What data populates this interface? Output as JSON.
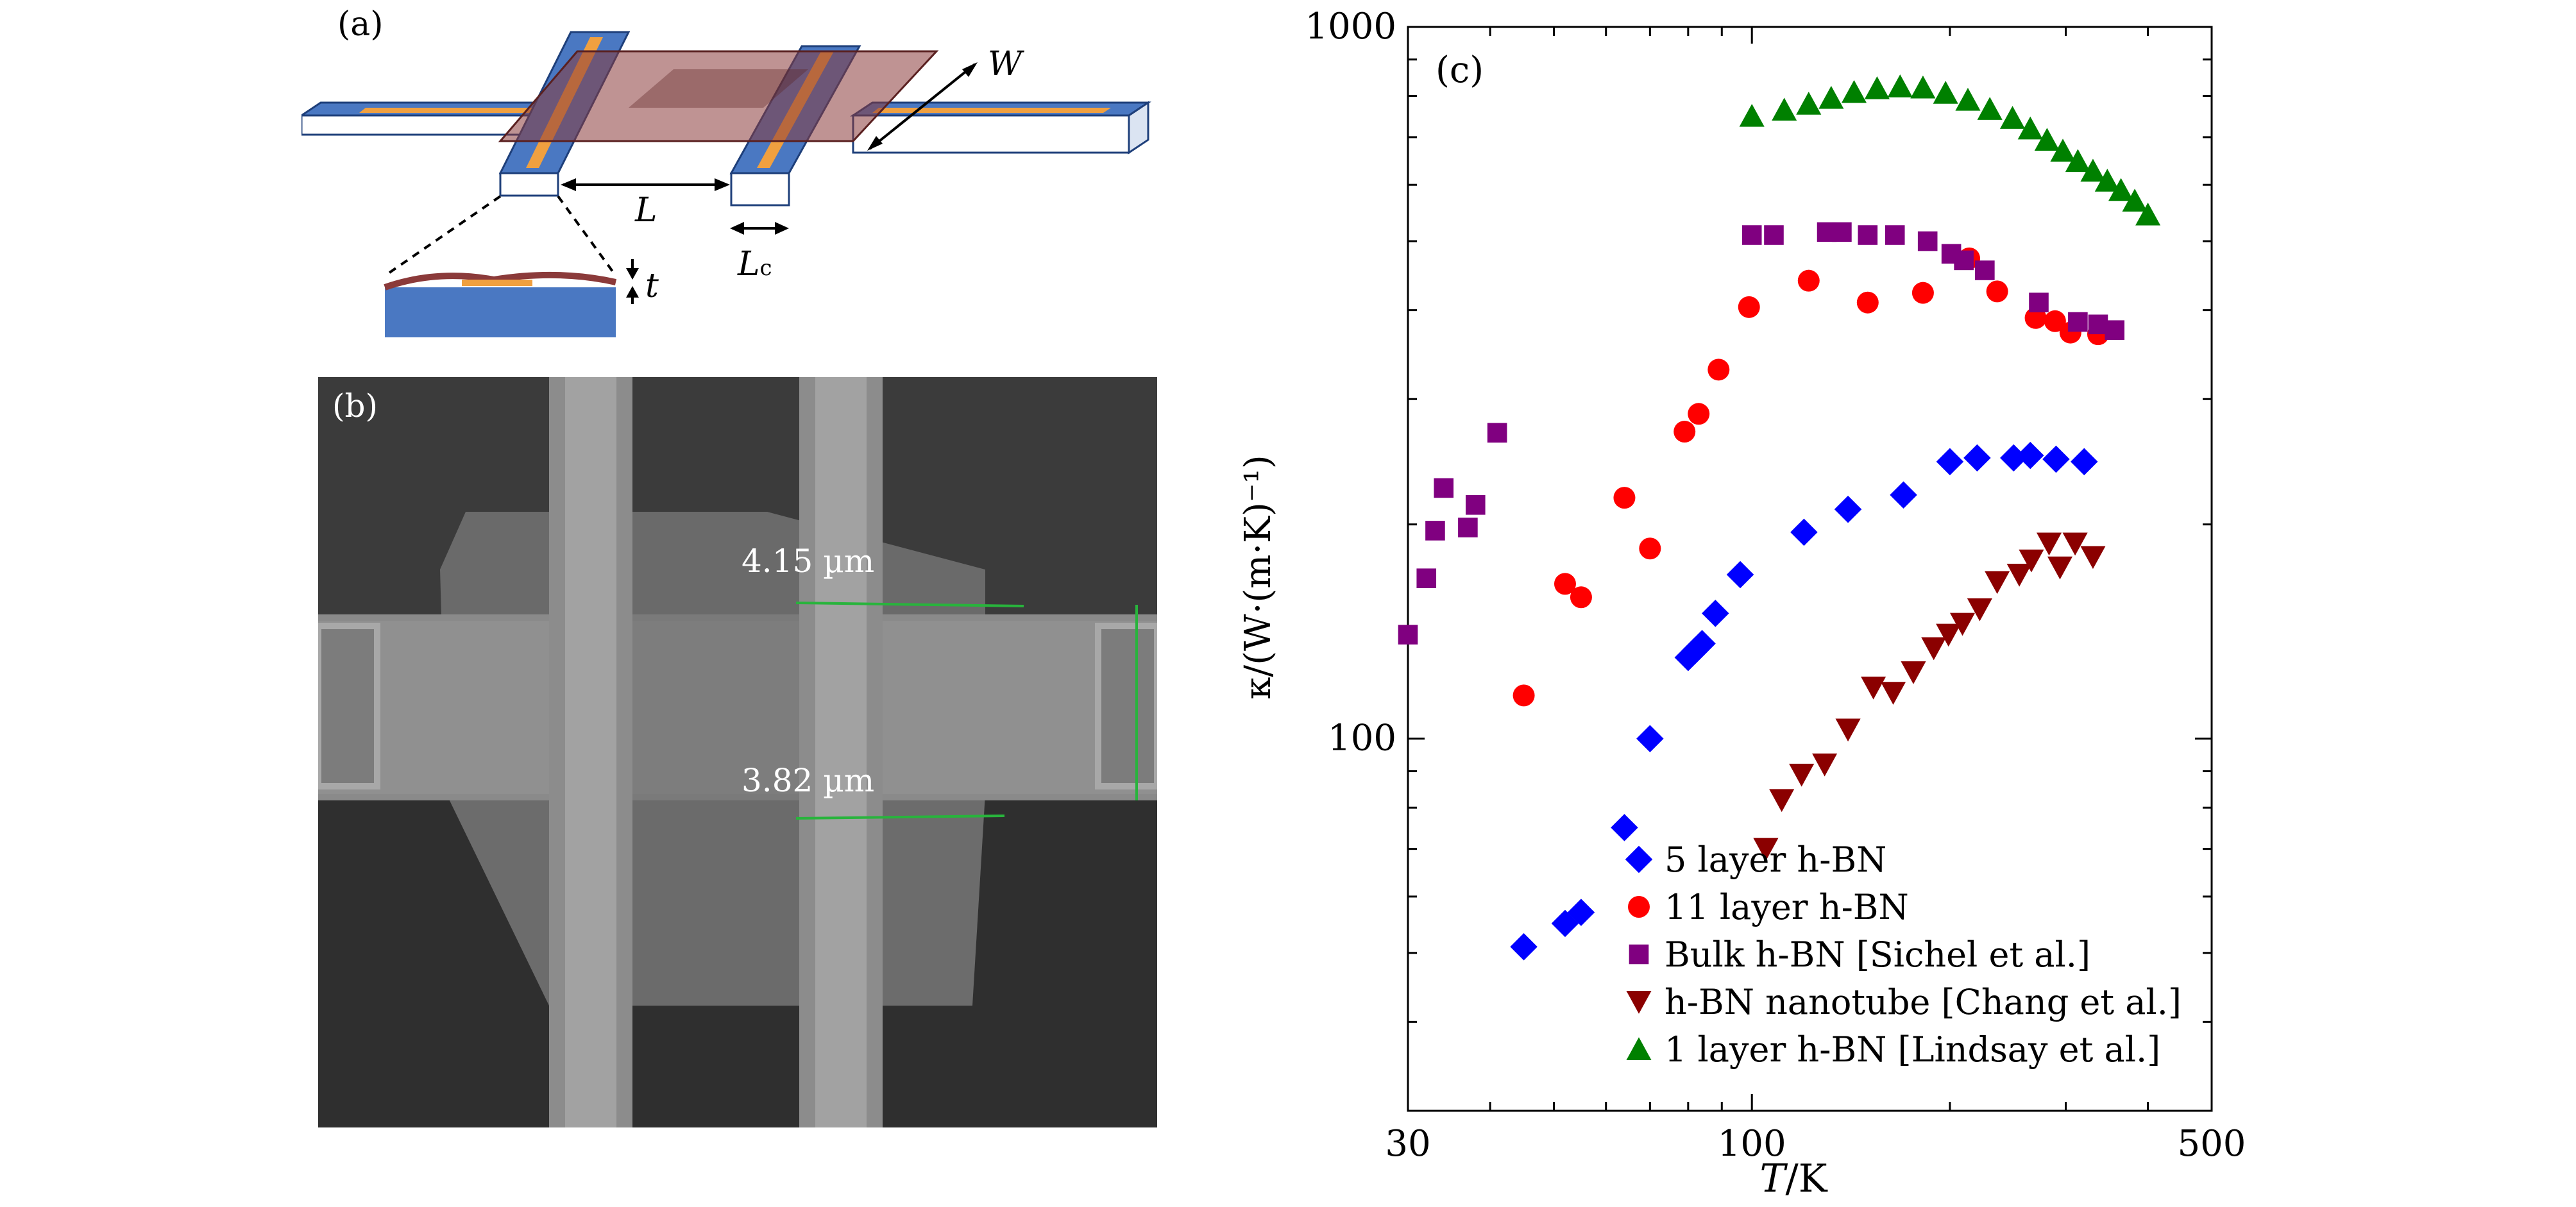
{
  "panel_a": {
    "label": "(a)",
    "dim_W": "W",
    "dim_L": "L",
    "dim_Lc_main": "L",
    "dim_Lc_sub": "c",
    "dim_t": "t"
  },
  "panel_b": {
    "label": "(b)",
    "measure_top": "4.15 µm",
    "measure_bottom": "3.82 µm"
  },
  "chart_data": {
    "type": "scatter",
    "panel_label": "(c)",
    "xlabel_var": "T",
    "xlabel_unit": "/K",
    "ylabel": "κ/(W·(m·K)⁻¹)",
    "xscale": "log",
    "yscale": "log",
    "xlim": [
      30,
      500
    ],
    "ylim": [
      30,
      1000
    ],
    "xticks": [
      "30",
      "100",
      "500"
    ],
    "yticks": [
      "100",
      "1000"
    ],
    "grid": false,
    "legend_position": "bottom-right",
    "series": [
      {
        "name": "5 layer h-BN",
        "marker": "diamond",
        "color": "#0000ff",
        "points": [
          [
            45,
            51
          ],
          [
            52,
            55
          ],
          [
            55,
            57
          ],
          [
            64,
            75
          ],
          [
            70,
            100
          ],
          [
            80,
            130
          ],
          [
            82,
            133
          ],
          [
            84,
            136
          ],
          [
            88,
            150
          ],
          [
            96,
            170
          ],
          [
            120,
            195
          ],
          [
            140,
            210
          ],
          [
            170,
            220
          ],
          [
            200,
            245
          ],
          [
            220,
            248
          ],
          [
            250,
            248
          ],
          [
            265,
            250
          ],
          [
            290,
            247
          ],
          [
            320,
            245
          ]
        ]
      },
      {
        "name": "11 layer h-BN",
        "marker": "circle",
        "color": "#ff0000",
        "points": [
          [
            45,
            115
          ],
          [
            52,
            165
          ],
          [
            55,
            158
          ],
          [
            64,
            218
          ],
          [
            70,
            185
          ],
          [
            79,
            270
          ],
          [
            83,
            286
          ],
          [
            89,
            330
          ],
          [
            99,
            404
          ],
          [
            122,
            440
          ],
          [
            150,
            410
          ],
          [
            182,
            423
          ],
          [
            214,
            473
          ],
          [
            236,
            425
          ],
          [
            270,
            390
          ],
          [
            289,
            386
          ],
          [
            305,
            372
          ],
          [
            336,
            370
          ]
        ]
      },
      {
        "name": "Bulk h-BN [Sichel et al.]",
        "marker": "square",
        "color": "#800080",
        "points": [
          [
            30,
            140
          ],
          [
            32,
            168
          ],
          [
            33,
            196
          ],
          [
            34,
            225
          ],
          [
            37,
            198
          ],
          [
            38,
            213
          ],
          [
            41,
            269
          ],
          [
            100,
            510
          ],
          [
            108,
            510
          ],
          [
            130,
            515
          ],
          [
            137,
            515
          ],
          [
            150,
            510
          ],
          [
            165,
            510
          ],
          [
            185,
            500
          ],
          [
            201,
            480
          ],
          [
            210,
            470
          ],
          [
            226,
            455
          ],
          [
            273,
            410
          ],
          [
            313,
            385
          ],
          [
            336,
            382
          ],
          [
            356,
            375
          ]
        ]
      },
      {
        "name": "h-BN nanotube [Chang et al.]",
        "marker": "triangle-down",
        "color": "#8b0000",
        "points": [
          [
            105,
            70
          ],
          [
            111,
            82
          ],
          [
            119,
            89
          ],
          [
            129,
            92
          ],
          [
            140,
            103
          ],
          [
            153,
            118
          ],
          [
            164,
            116
          ],
          [
            176,
            124
          ],
          [
            189,
            134
          ],
          [
            199,
            140
          ],
          [
            209,
            145
          ],
          [
            222,
            152
          ],
          [
            236,
            166
          ],
          [
            255,
            170
          ],
          [
            266,
            178
          ],
          [
            283,
            188
          ],
          [
            294,
            174
          ],
          [
            310,
            188
          ],
          [
            330,
            180
          ]
        ]
      },
      {
        "name": "1 layer h-BN [Lindsay et al.]",
        "marker": "triangle-up",
        "color": "#008000",
        "points": [
          [
            100,
            750
          ],
          [
            112,
            765
          ],
          [
            122,
            780
          ],
          [
            132,
            795
          ],
          [
            143,
            810
          ],
          [
            155,
            820
          ],
          [
            168,
            825
          ],
          [
            182,
            822
          ],
          [
            197,
            808
          ],
          [
            213,
            790
          ],
          [
            230,
            767
          ],
          [
            249,
            745
          ],
          [
            265,
            720
          ],
          [
            281,
            694
          ],
          [
            297,
            670
          ],
          [
            313,
            648
          ],
          [
            330,
            628
          ],
          [
            347,
            608
          ],
          [
            364,
            590
          ],
          [
            382,
            570
          ],
          [
            400,
            545
          ]
        ]
      }
    ]
  }
}
